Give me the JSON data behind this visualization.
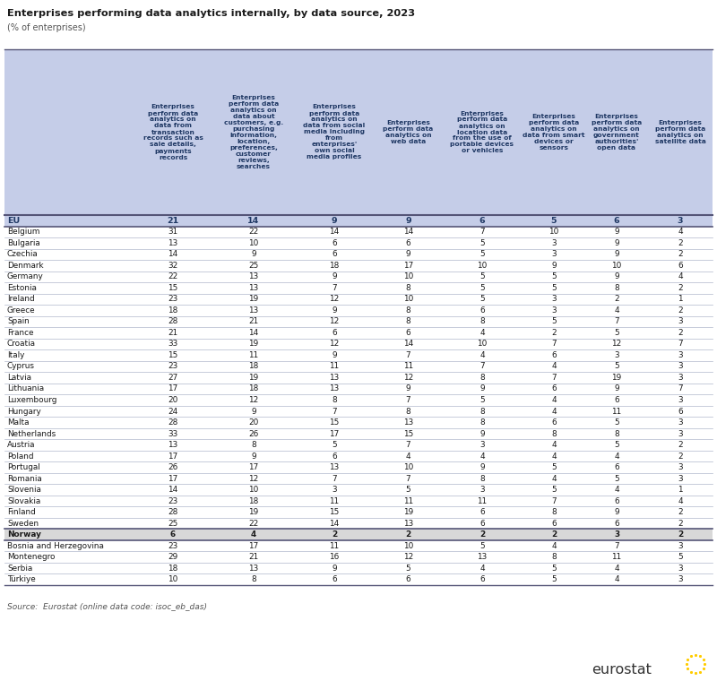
{
  "title": "Enterprises performing data analytics internally, by data source, 2023",
  "subtitle": "(% of enterprises)",
  "source": "Source:  Eurostat (online data code: isoc_eb_das)",
  "col_headers": [
    "Enterprises\nperform data\nanalytics on\ndata from\ntransaction\nrecords such as\nsale details,\npayments\nrecords",
    "Enterprises\nperform data\nanalytics on\ndata about\ncustomers, e.g.\npurchasing\ninformation,\nlocation,\npreferences,\ncustomer\nreviews,\nsearches",
    "Enterprises\nperform data\nanalytics on\ndata from social\nmedia including\nfrom\nenterprises'\nown social\nmedia profiles",
    "Enterprises\nperform data\nanalytics on\nweb data",
    "Enterprises\nperform data\nanalytics on\nlocation data\nfrom the use of\nportable devices\nor vehicles",
    "Enterprises\nperform data\nanalytics on\ndata from smart\ndevices or\nsensors",
    "Enterprises\nperform data\nanalytics on\ngovernment\nauthorities'\nopen data",
    "Enterprises\nperform data\nanalytics on\nsatellite data"
  ],
  "rows": [
    [
      "EU",
      21,
      14,
      9,
      9,
      6,
      5,
      6,
      3
    ],
    [
      "Belgium",
      31,
      22,
      14,
      14,
      7,
      10,
      9,
      4
    ],
    [
      "Bulgaria",
      13,
      10,
      6,
      6,
      5,
      3,
      9,
      2
    ],
    [
      "Czechia",
      14,
      9,
      6,
      9,
      5,
      3,
      9,
      2
    ],
    [
      "Denmark",
      32,
      25,
      18,
      17,
      10,
      9,
      10,
      6
    ],
    [
      "Germany",
      22,
      13,
      9,
      10,
      5,
      5,
      9,
      4
    ],
    [
      "Estonia",
      15,
      13,
      7,
      8,
      5,
      5,
      8,
      2
    ],
    [
      "Ireland",
      23,
      19,
      12,
      10,
      5,
      3,
      2,
      1
    ],
    [
      "Greece",
      18,
      13,
      9,
      8,
      6,
      3,
      4,
      2
    ],
    [
      "Spain",
      28,
      21,
      12,
      8,
      8,
      5,
      7,
      3
    ],
    [
      "France",
      21,
      14,
      6,
      6,
      4,
      2,
      5,
      2
    ],
    [
      "Croatia",
      33,
      19,
      12,
      14,
      10,
      7,
      12,
      7
    ],
    [
      "Italy",
      15,
      11,
      9,
      7,
      4,
      6,
      3,
      3
    ],
    [
      "Cyprus",
      23,
      18,
      11,
      11,
      7,
      4,
      5,
      3
    ],
    [
      "Latvia",
      27,
      19,
      13,
      12,
      8,
      7,
      19,
      3
    ],
    [
      "Lithuania",
      17,
      18,
      13,
      9,
      9,
      6,
      9,
      7
    ],
    [
      "Luxembourg",
      20,
      12,
      8,
      7,
      5,
      4,
      6,
      3
    ],
    [
      "Hungary",
      24,
      9,
      7,
      8,
      8,
      4,
      11,
      6
    ],
    [
      "Malta",
      28,
      20,
      15,
      13,
      8,
      6,
      5,
      3
    ],
    [
      "Netherlands",
      33,
      26,
      17,
      15,
      9,
      8,
      8,
      3
    ],
    [
      "Austria",
      13,
      8,
      5,
      7,
      3,
      4,
      5,
      2
    ],
    [
      "Poland",
      17,
      9,
      6,
      4,
      4,
      4,
      4,
      2
    ],
    [
      "Portugal",
      26,
      17,
      13,
      10,
      9,
      5,
      6,
      3
    ],
    [
      "Romania",
      17,
      12,
      7,
      7,
      8,
      4,
      5,
      3
    ],
    [
      "Slovenia",
      14,
      10,
      3,
      5,
      3,
      5,
      4,
      1
    ],
    [
      "Slovakia",
      23,
      18,
      11,
      11,
      11,
      7,
      6,
      4
    ],
    [
      "Finland",
      28,
      19,
      15,
      19,
      6,
      8,
      9,
      2
    ],
    [
      "Sweden",
      25,
      22,
      14,
      13,
      6,
      6,
      6,
      2
    ],
    [
      "Norway",
      6,
      4,
      2,
      2,
      2,
      2,
      3,
      2
    ],
    [
      "Bosnia and Herzegovina",
      23,
      17,
      11,
      10,
      5,
      4,
      7,
      3
    ],
    [
      "Montenegro",
      29,
      21,
      16,
      12,
      13,
      8,
      11,
      5
    ],
    [
      "Serbia",
      18,
      13,
      9,
      5,
      4,
      5,
      4,
      3
    ],
    [
      "Türkiye",
      10,
      8,
      6,
      6,
      6,
      5,
      4,
      3
    ]
  ],
  "header_bg": "#c5cde8",
  "eu_row_bg": "#c5cde8",
  "norway_row_bg": "#d8d8d8",
  "white_row_bg": "#ffffff",
  "header_text_color": "#1f3864",
  "eu_text_color": "#1f3864",
  "body_text_color": "#1a1a1a",
  "norway_text_color": "#1a1a1a",
  "title_color": "#1a1a1a",
  "subtitle_color": "#555555",
  "source_color": "#555555",
  "line_color_light": "#b0b8cc",
  "line_color_dark": "#555577",
  "line_color_thick": "#444466"
}
